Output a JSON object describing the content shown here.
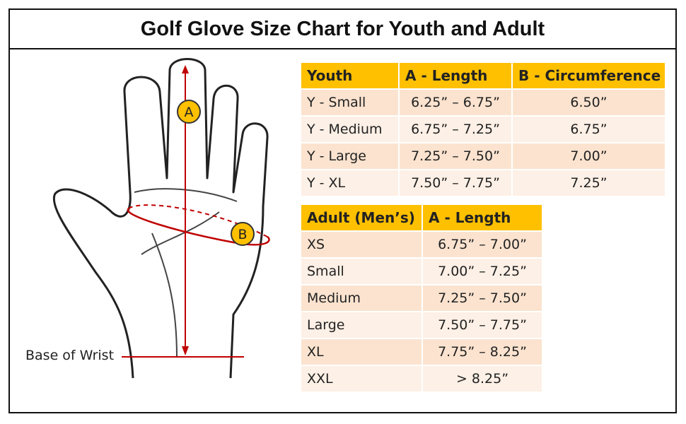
{
  "header": {
    "title": "Golf Glove Size Chart for Youth and Adult"
  },
  "diagram": {
    "label_a": "A",
    "label_b": "B",
    "wrist_label": "Base of Wrist"
  },
  "youth_table": {
    "columns": [
      "Youth",
      "A - Length",
      "B - Circumference"
    ],
    "rows": [
      [
        "Y - Small",
        "6.25” – 6.75”",
        "6.50”"
      ],
      [
        "Y - Medium",
        "6.75” – 7.25”",
        "6.75”"
      ],
      [
        "Y - Large",
        "7.25” – 7.50”",
        "7.00”"
      ],
      [
        "Y - XL",
        "7.50” – 7.75”",
        "7.25”"
      ]
    ]
  },
  "adult_table": {
    "columns": [
      "Adult (Men’s)",
      "A - Length"
    ],
    "rows": [
      [
        "XS",
        "6.75” – 7.00”"
      ],
      [
        "Small",
        "7.00” – 7.25”"
      ],
      [
        "Medium",
        "7.25” – 7.50”"
      ],
      [
        "Large",
        "7.50” – 7.75”"
      ],
      [
        "XL",
        "7.75” – 8.25”"
      ],
      [
        "XXL",
        "> 8.25”"
      ]
    ]
  }
}
